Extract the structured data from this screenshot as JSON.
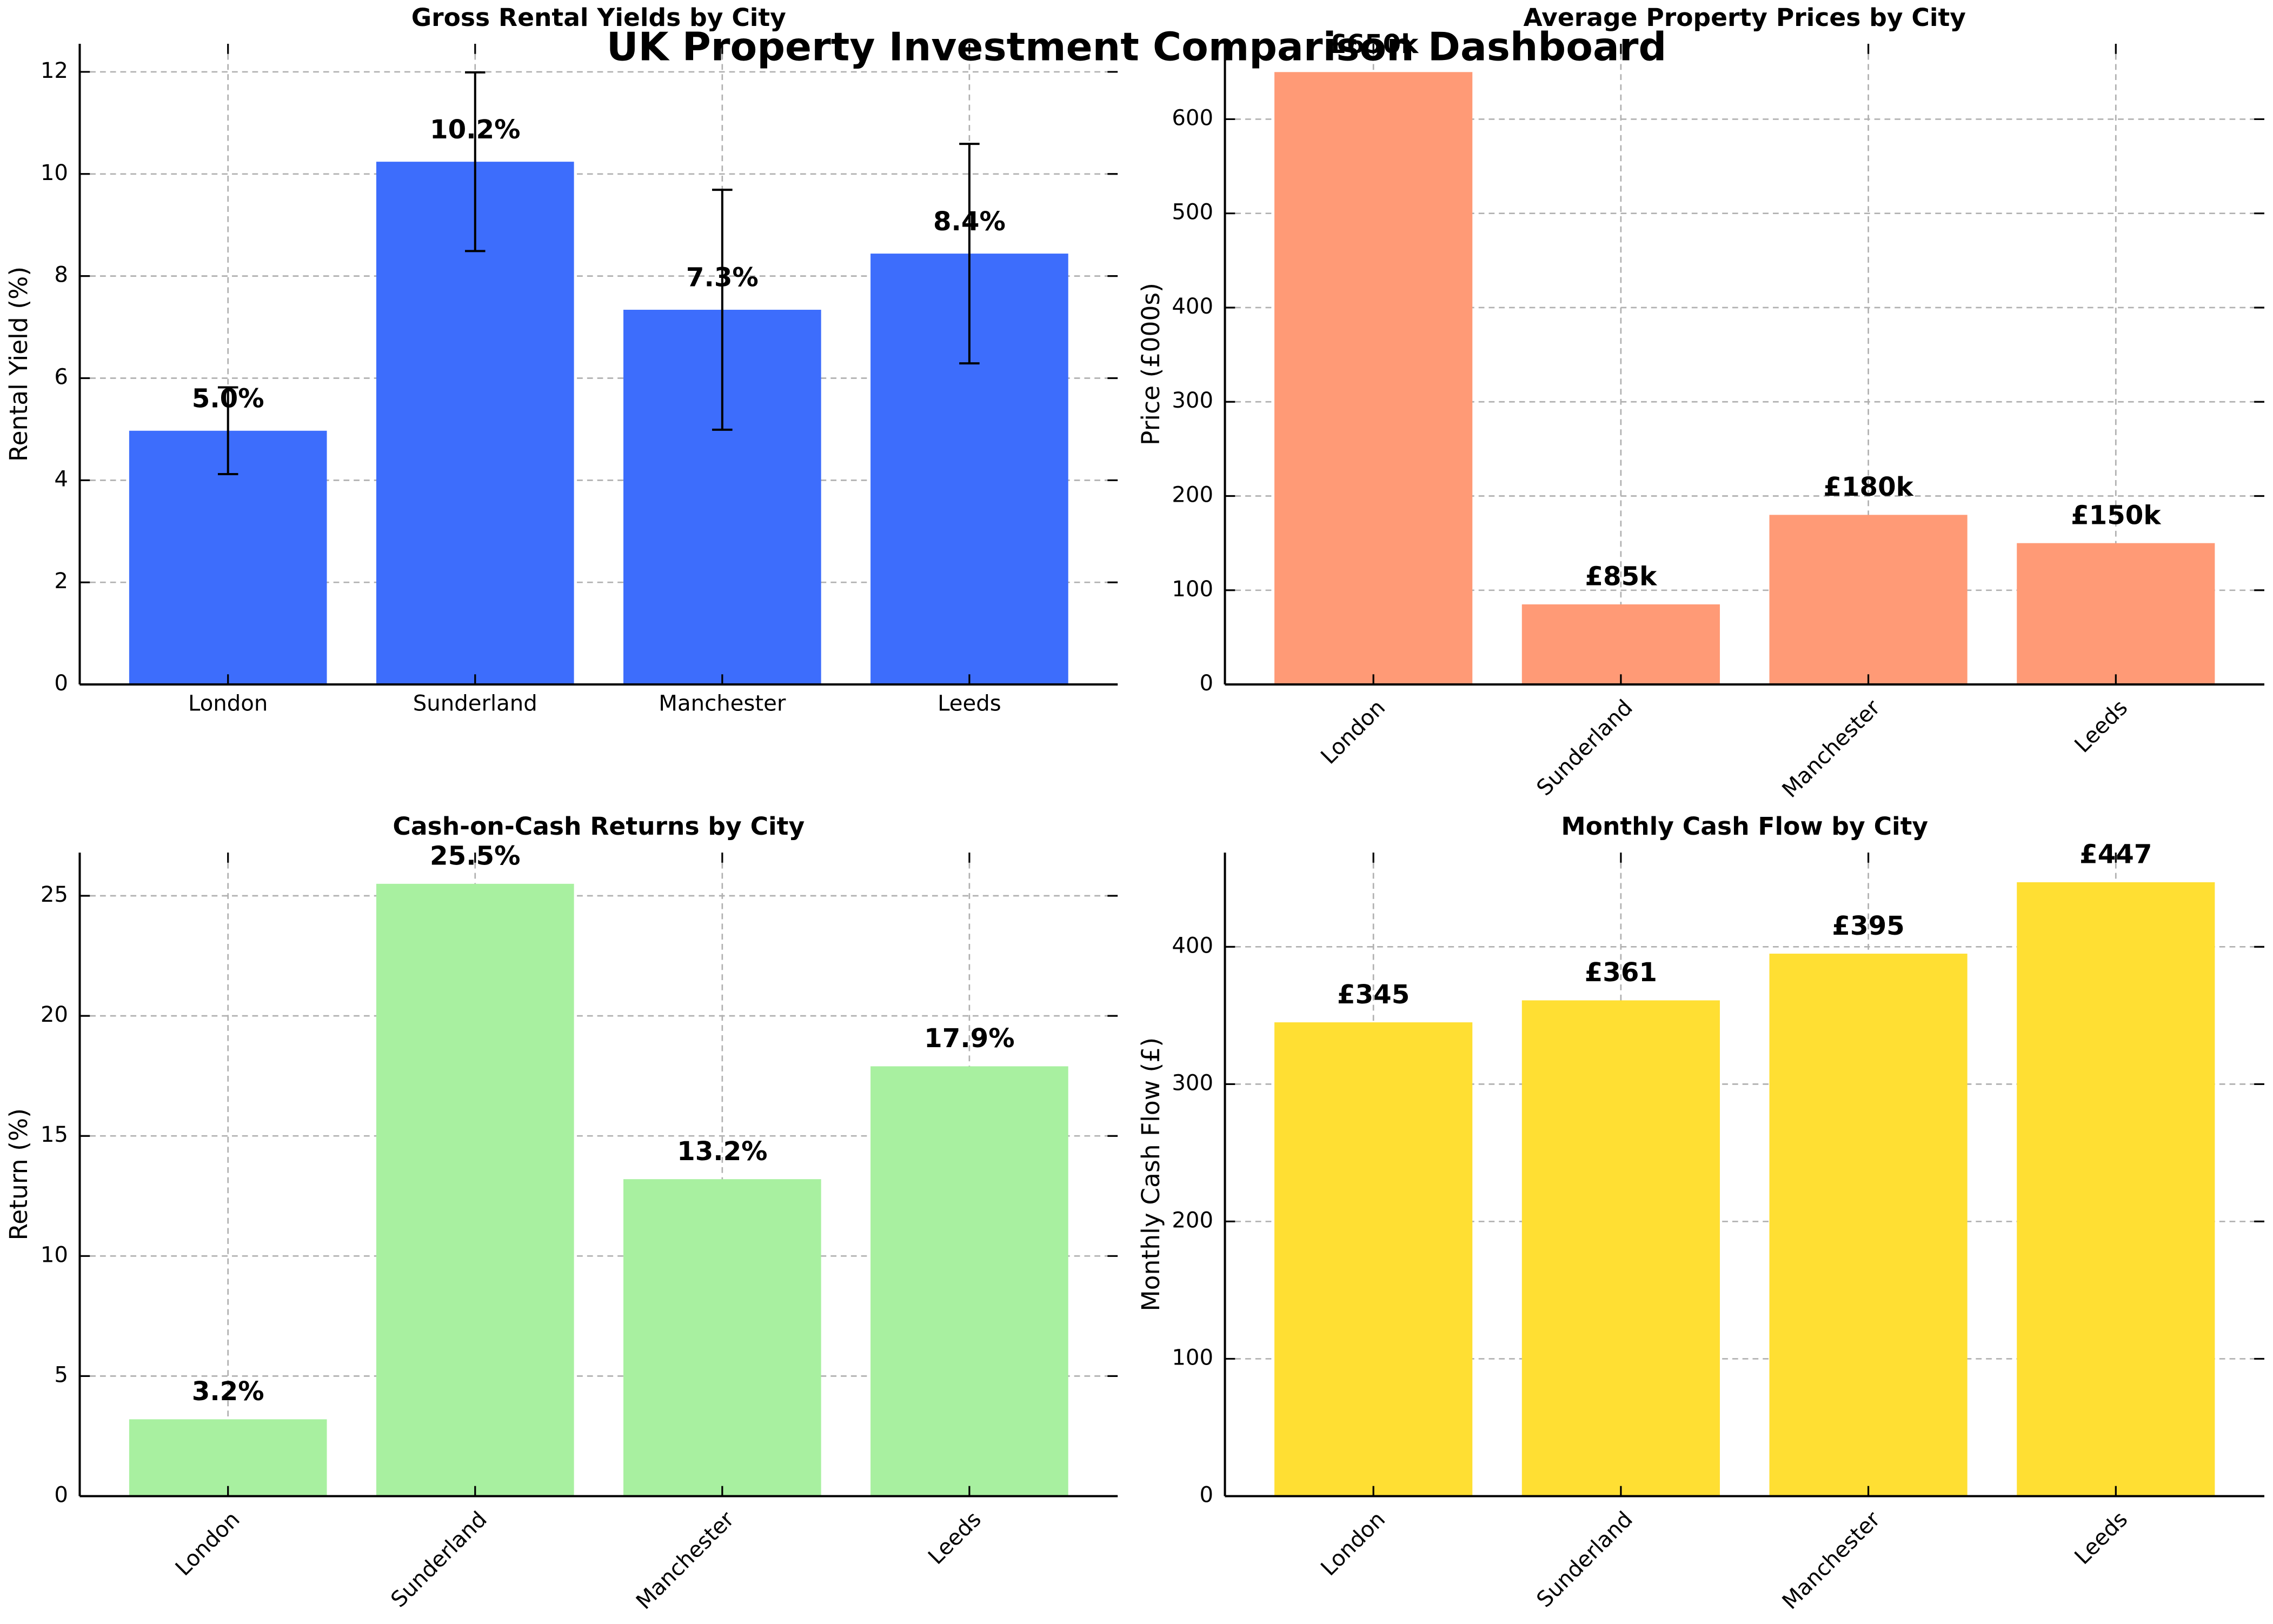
{
  "title": "UK Property Investment Comparison Dashboard",
  "chart_data": [
    {
      "type": "bar",
      "title": "Gross Rental Yields by City",
      "ylabel": "Rental Yield (%)",
      "categories": [
        "London",
        "Sunderland",
        "Manchester",
        "Leeds"
      ],
      "values": [
        4.97,
        10.24,
        7.34,
        8.44
      ],
      "value_labels": [
        "5.0%",
        "10.2%",
        "7.3%",
        "8.4%"
      ],
      "errors": [
        0.85,
        1.75,
        2.35,
        2.15
      ],
      "color": "#3d6dfc",
      "ylim": [
        0,
        12.55
      ],
      "yticks": [
        0,
        2,
        4,
        6,
        8,
        10,
        12
      ],
      "grid": true,
      "rotate_labels": false
    },
    {
      "type": "bar",
      "title": "Average Property Prices by City",
      "ylabel": "Price (£000s)",
      "categories": [
        "London",
        "Sunderland",
        "Manchester",
        "Leeds"
      ],
      "values": [
        650,
        85,
        180,
        150
      ],
      "value_labels": [
        "£650k",
        "£85k",
        "£180k",
        "£150k"
      ],
      "color": "#ff9a76",
      "ylim": [
        0,
        680
      ],
      "yticks": [
        0,
        100,
        200,
        300,
        400,
        500,
        600
      ],
      "grid": true,
      "rotate_labels": true
    },
    {
      "type": "bar",
      "title": "Cash-on-Cash Returns by City",
      "ylabel": "Return (%)",
      "categories": [
        "London",
        "Sunderland",
        "Manchester",
        "Leeds"
      ],
      "values": [
        3.2,
        25.5,
        13.2,
        17.9
      ],
      "value_labels": [
        "3.2%",
        "25.5%",
        "13.2%",
        "17.9%"
      ],
      "color": "#a8f0a0",
      "ylim": [
        0,
        26.8
      ],
      "yticks": [
        0,
        5,
        10,
        15,
        20,
        25
      ],
      "grid": true,
      "rotate_labels": true
    },
    {
      "type": "bar",
      "title": "Monthly Cash Flow by City",
      "ylabel": "Monthly Cash Flow (£)",
      "categories": [
        "London",
        "Sunderland",
        "Manchester",
        "Leeds"
      ],
      "values": [
        345,
        361,
        395,
        447
      ],
      "value_labels": [
        "£345",
        "£361",
        "£395",
        "£447"
      ],
      "color": "#ffdf33",
      "ylim": [
        0,
        468.6
      ],
      "yticks": [
        0,
        100,
        200,
        300,
        400
      ],
      "grid": true,
      "rotate_labels": true
    }
  ]
}
